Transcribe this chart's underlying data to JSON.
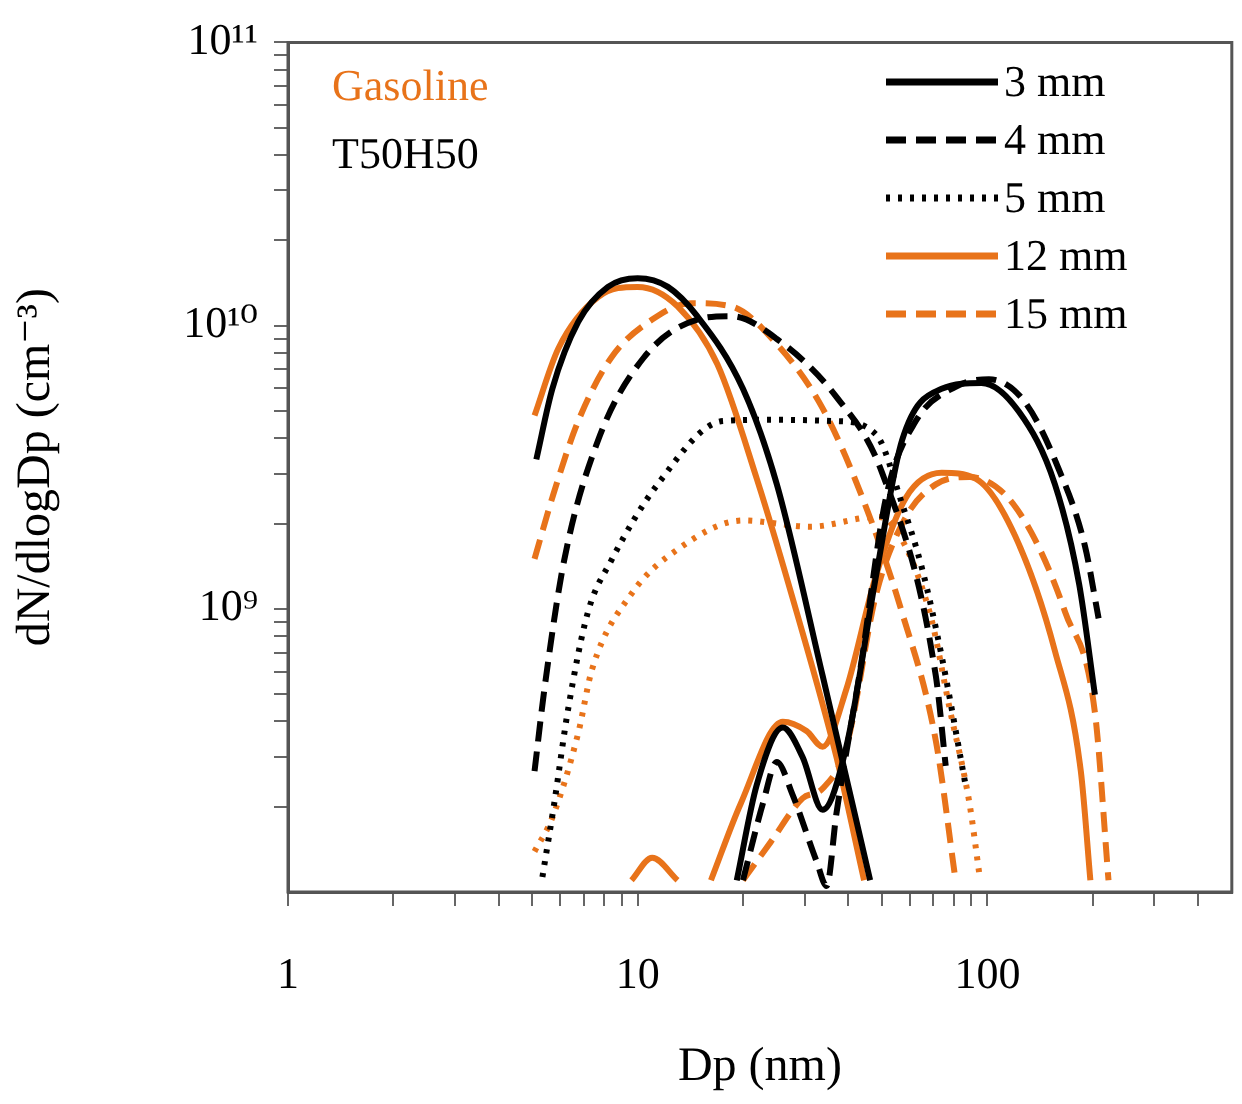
{
  "chart_data": {
    "type": "line",
    "xlabel": "Dp (nm)",
    "ylabel": "dN/dlogDp (cm⁻³)",
    "log": "xy",
    "grid": false,
    "legend": "top right",
    "marker": "none",
    "annotations": [
      "Gasoline",
      "T50H50"
    ],
    "xlim": [
      1,
      500
    ],
    "xticks": [
      1,
      {
        "value": 2,
        "label": null
      },
      {
        "value": 3,
        "label": null
      },
      {
        "value": 4,
        "label": null
      },
      {
        "value": 5,
        "label": null
      },
      {
        "value": 6,
        "label": null
      },
      {
        "value": 7,
        "label": null
      },
      {
        "value": 8,
        "label": null
      },
      {
        "value": 9,
        "label": null
      },
      10,
      {
        "value": 20,
        "label": null
      },
      {
        "value": 30,
        "label": null
      },
      {
        "value": 40,
        "label": null
      },
      {
        "value": 50,
        "label": null
      },
      {
        "value": 60,
        "label": null
      },
      {
        "value": 70,
        "label": null
      },
      {
        "value": 80,
        "label": null
      },
      {
        "value": 90,
        "label": null
      },
      100,
      {
        "value": 200,
        "label": null
      },
      {
        "value": 300,
        "label": null
      },
      {
        "value": 400,
        "label": null
      }
    ],
    "ylim": [
      100000000,
      100000000000
    ],
    "yticks": [
      {
        "value": 200000000,
        "label": null
      },
      {
        "value": 300000000,
        "label": null
      },
      {
        "value": 400000000,
        "label": null
      },
      {
        "value": 500000000,
        "label": null
      },
      {
        "value": 600000000,
        "label": null
      },
      {
        "value": 700000000,
        "label": null
      },
      {
        "value": 800000000,
        "label": null
      },
      {
        "value": 900000000,
        "label": null
      },
      {
        "value": 1000000000,
        "label": "10⁹"
      },
      {
        "value": 2000000000,
        "label": null
      },
      {
        "value": 3000000000,
        "label": null
      },
      {
        "value": 4000000000,
        "label": null
      },
      {
        "value": 5000000000,
        "label": null
      },
      {
        "value": 6000000000,
        "label": null
      },
      {
        "value": 7000000000,
        "label": null
      },
      {
        "value": 8000000000,
        "label": null
      },
      {
        "value": 9000000000,
        "label": null
      },
      {
        "value": 10000000000,
        "label": "10¹⁰"
      },
      {
        "value": 20000000000,
        "label": null
      },
      {
        "value": 30000000000,
        "label": null
      },
      {
        "value": 40000000000,
        "label": null
      },
      {
        "value": 50000000000,
        "label": null
      },
      {
        "value": 60000000000,
        "label": null
      },
      {
        "value": 70000000000,
        "label": null
      },
      {
        "value": 80000000000,
        "label": null
      },
      {
        "value": 90000000000,
        "label": null
      },
      {
        "value": 100000000000,
        "label": "10¹¹"
      }
    ],
    "series": [
      {
        "name": "3 mm",
        "color": "#000000",
        "line_style": "solid",
        "x": [
          5.13,
          5.7,
          6.76,
          8.22,
          10,
          12.2,
          14.8,
          20,
          25,
          33.8,
          46.2
        ],
        "values": [
          3370000000.0,
          5980000000.0,
          10300000000.0,
          13700000000.0,
          14700000000.0,
          13700000000.0,
          10800000000.0,
          5980000000.0,
          2750000000.0,
          580000000.0,
          110000000.0
        ]
      },
      {
        "color": "#000000",
        "line_style": "solid",
        "x": [
          19.2,
          21.9,
          26,
          29.6,
          33.8,
          39.5,
          48.1,
          57,
          74,
          96.1,
          123,
          156,
          183,
          203
        ],
        "values": [
          110000000.0,
          239000000.0,
          381000000.0,
          300000000.0,
          195000000.0,
          326000000.0,
          1320000000.0,
          3930000000.0,
          5980000000.0,
          6270000000.0,
          4970000000.0,
          2750000000.0,
          1220000000.0,
          497000000.0
        ]
      },
      {
        "name": "4 mm",
        "color": "#000000",
        "line_style": "dashed",
        "x": [
          5.07,
          5.41,
          6.16,
          7.7,
          10.4,
          14.8,
          18.5,
          25,
          37,
          50,
          71.2,
          76
        ],
        "values": [
          267000000.0,
          520000000.0,
          1480000000.0,
          3930000000.0,
          7700000000.0,
          10500000000.0,
          10800000000.0,
          8970000000.0,
          5600000000.0,
          3020000000.0,
          580000000.0,
          279000000.0
        ]
      },
      {
        "color": "#000000",
        "line_style": "dashed",
        "x": [
          20,
          22.8,
          25,
          27.7,
          32.5,
          34.7,
          37,
          43.3,
          51.3,
          62.4,
          81.1,
          101,
          128,
          160,
          190,
          208
        ],
        "values": [
          110000000.0,
          205000000.0,
          288000000.0,
          221000000.0,
          128000000.0,
          105000000.0,
          189000000.0,
          610000000.0,
          2470000000.0,
          4600000000.0,
          6080000000.0,
          6470000000.0,
          5370000000.0,
          3110000000.0,
          1670000000.0,
          925000000.0
        ]
      },
      {
        "name": "5 mm",
        "color": "#000000",
        "line_style": "dotted",
        "x": [
          5.34,
          5.77,
          6.33,
          7.2,
          8.4,
          11.4,
          17.5,
          24,
          37,
          48.1,
          57,
          65,
          74,
          86.6
        ],
        "values": [
          113000000.0,
          205000000.0,
          445000000.0,
          970000000.0,
          1480000000.0,
          2750000000.0,
          4600000000.0,
          4650000000.0,
          4600000000.0,
          4120000000.0,
          2350000000.0,
          1390000000.0,
          680000000.0,
          239000000.0
        ]
      },
      {
        "name": "12 mm",
        "color": "#e8731a",
        "line_style": "solid",
        "x": [
          5.07,
          5.93,
          7.7,
          10,
          13,
          16.9,
          21.9,
          28.5,
          37,
          44.4
        ],
        "values": [
          4810000000.0,
          8300000000.0,
          12600000000.0,
          13700000000.0,
          11700000000.0,
          7300000000.0,
          2880000000.0,
          970000000.0,
          300000000.0,
          110000000.0
        ]
      },
      {
        "color": "#e8731a",
        "line_style": "solid",
        "x": [
          9.6,
          11,
          13
        ],
        "values": [
          110000000.0,
          132000000.0,
          110000000.0
        ]
      },
      {
        "color": "#e8731a",
        "line_style": "solid",
        "x": [
          16.2,
          19.7,
          26,
          30.4,
          33.8,
          39.5,
          48.1,
          58.5,
          74,
          92.5,
          120,
          156,
          185,
          197
        ],
        "values": [
          110000000.0,
          205000000.0,
          399000000.0,
          370000000.0,
          326000000.0,
          520000000.0,
          1320000000.0,
          2470000000.0,
          3020000000.0,
          2880000000.0,
          1810000000.0,
          710000000.0,
          267000000.0,
          110000000.0
        ]
      },
      {
        "name": "15 mm",
        "color": "#e8731a",
        "line_style": "dashed",
        "x": [
          5.07,
          5.7,
          6.76,
          8.4,
          11,
          14.2,
          18.5,
          25,
          33.8,
          43.9,
          57,
          71.2,
          81.1
        ],
        "values": [
          1500000000.0,
          2470000000.0,
          4600000000.0,
          7700000000.0,
          10500000000.0,
          12000000000.0,
          11700000000.0,
          8600000000.0,
          5100000000.0,
          2470000000.0,
          970000000.0,
          342000000.0,
          110000000.0
        ]
      },
      {
        "color": "#e8731a",
        "line_style": "dashed",
        "x": [
          20,
          24,
          29.6,
          33.8,
          39.5,
          48.1,
          58.5,
          71.2,
          88.9,
          112,
          137,
          167,
          203,
          222
        ],
        "values": [
          110000000.0,
          150000000.0,
          214000000.0,
          232000000.0,
          326000000.0,
          1130000000.0,
          2110000000.0,
          2750000000.0,
          2920000000.0,
          2540000000.0,
          1750000000.0,
          970000000.0,
          430000000.0,
          110000000.0
        ]
      },
      {
        "color": "#e8731a",
        "line_style": "dotted",
        "x": [
          5.07,
          5.7,
          6.76,
          7.4,
          9.6,
          13,
          20,
          31.2,
          48.1,
          52.7,
          68.4,
          78,
          88.9,
          94.9
        ],
        "values": [
          139000000.0,
          183000000.0,
          364000000.0,
          610000000.0,
          1130000000.0,
          1620000000.0,
          2050000000.0,
          1950000000.0,
          2110000000.0,
          2020000000.0,
          970000000.0,
          445000000.0,
          205000000.0,
          115000000.0
        ]
      }
    ]
  }
}
